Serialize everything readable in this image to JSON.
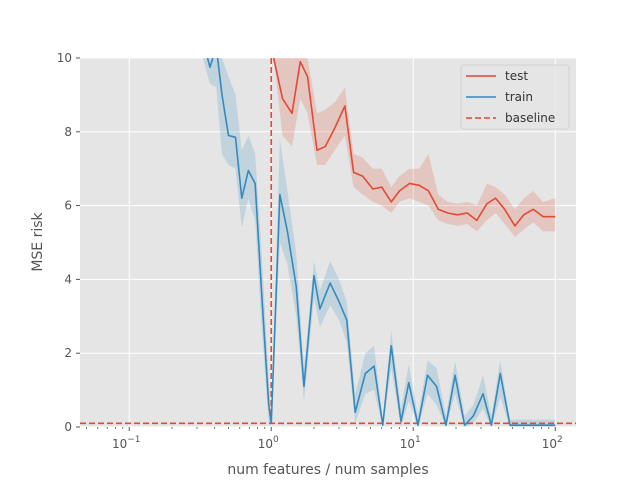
{
  "chart_data": {
    "type": "line",
    "xlabel": "num features / num samples",
    "ylabel": "MSE risk",
    "xscale": "log",
    "xlim": [
      0.045,
      140
    ],
    "ylim": [
      0,
      10
    ],
    "x_ticks": [
      {
        "value": 0.1,
        "base": "10",
        "exp": "−1"
      },
      {
        "value": 1,
        "base": "10",
        "exp": "0"
      },
      {
        "value": 10,
        "base": "10",
        "exp": "1"
      },
      {
        "value": 100,
        "base": "10",
        "exp": "2"
      }
    ],
    "y_ticks": [
      0,
      2,
      4,
      6,
      8,
      10
    ],
    "grid": true,
    "legend_position": "top-right",
    "series": [
      {
        "name": "test",
        "color": "#E24A33",
        "x": [
          1.04,
          1.2,
          1.4,
          1.6,
          1.8,
          2.1,
          2.4,
          2.8,
          3.3,
          3.8,
          4.4,
          5.2,
          6,
          7,
          8,
          9.4,
          11,
          12.8,
          15,
          17.5,
          20.5,
          24,
          28,
          33,
          38,
          44,
          52,
          60,
          70,
          82,
          100
        ],
        "values": [
          10,
          8.9,
          8.5,
          9.9,
          9.5,
          7.5,
          7.6,
          8.1,
          8.7,
          6.9,
          6.8,
          6.45,
          6.5,
          6.1,
          6.4,
          6.6,
          6.55,
          6.4,
          5.9,
          5.8,
          5.75,
          5.8,
          5.6,
          6.05,
          6.2,
          5.9,
          5.45,
          5.75,
          5.9,
          5.7,
          5.7
        ],
        "lower": [
          10,
          7.9,
          7.6,
          8.9,
          8.5,
          7.1,
          7.1,
          7.5,
          7.9,
          6.5,
          6.3,
          6.1,
          6.0,
          5.8,
          6.1,
          6.2,
          6.1,
          6.0,
          5.6,
          5.5,
          5.45,
          5.5,
          5.3,
          5.6,
          5.8,
          5.5,
          5.15,
          5.35,
          5.55,
          5.3,
          5.3
        ],
        "upper": [
          10,
          10,
          10,
          10,
          10,
          8.5,
          8.6,
          8.8,
          9.2,
          7.4,
          7.3,
          7.0,
          7.0,
          6.5,
          6.8,
          7.0,
          7.0,
          7.4,
          6.3,
          6.1,
          6.05,
          6.1,
          6.0,
          6.6,
          6.5,
          6.3,
          5.9,
          6.2,
          6.4,
          6.1,
          6.2
        ],
        "style": "solid"
      },
      {
        "name": "train",
        "color": "#348ABD",
        "x": [
          0.29,
          0.33,
          0.37,
          0.41,
          0.45,
          0.5,
          0.56,
          0.62,
          0.69,
          0.77,
          0.86,
          0.96,
          1.0,
          1.15,
          1.3,
          1.5,
          1.7,
          2.0,
          2.2,
          2.6,
          3.0,
          3.4,
          3.9,
          4.6,
          5.3,
          6.1,
          7.0,
          8.2,
          9.3,
          10.8,
          12.6,
          14.6,
          17,
          19.7,
          23,
          26.5,
          31,
          35.5,
          41,
          48,
          55,
          63,
          73,
          85,
          100
        ],
        "values": [
          10.3,
          10.5,
          9.75,
          10.3,
          9.0,
          7.9,
          7.85,
          6.2,
          6.95,
          6.6,
          3.5,
          0.6,
          0.1,
          6.3,
          5.3,
          3.8,
          1.1,
          4.1,
          3.2,
          3.9,
          3.4,
          2.9,
          0.4,
          1.45,
          1.65,
          0.05,
          2.2,
          0.15,
          1.2,
          0.05,
          1.4,
          1.1,
          0.05,
          1.4,
          0.05,
          0.3,
          0.9,
          0.05,
          1.45,
          0.05,
          0.05,
          0.05,
          0.05,
          0.05,
          0.05
        ],
        "lower": [
          10.3,
          10.5,
          9.3,
          9.2,
          7.4,
          7.1,
          7.0,
          5.4,
          6.2,
          5.6,
          2.6,
          0.1,
          0.0,
          5.0,
          4.4,
          3.0,
          0.7,
          3.5,
          2.7,
          3.3,
          2.9,
          2.3,
          0.1,
          0.9,
          1.0,
          0.0,
          1.6,
          0.0,
          0.7,
          0.0,
          0.9,
          0.6,
          0.0,
          0.9,
          0.0,
          0.1,
          0.5,
          0.0,
          0.8,
          0.0,
          0.0,
          0.0,
          0.0,
          0.0,
          0.0
        ],
        "upper": [
          10.5,
          10.5,
          10.3,
          10.5,
          10.3,
          9.5,
          9.0,
          7.5,
          7.9,
          7.4,
          4.6,
          1.3,
          0.2,
          7.8,
          6.4,
          4.7,
          1.6,
          4.5,
          3.7,
          4.5,
          4.0,
          3.4,
          0.9,
          2.0,
          2.2,
          0.2,
          2.6,
          0.5,
          1.7,
          0.3,
          1.8,
          1.6,
          0.3,
          1.8,
          0.3,
          0.6,
          1.4,
          0.3,
          1.8,
          0.2,
          0.2,
          0.2,
          0.2,
          0.2,
          0.2
        ],
        "style": "solid"
      }
    ],
    "reference_lines": [
      {
        "name": "baseline",
        "orientation": "horizontal",
        "value": 0.1,
        "color": "#E24A33",
        "style": "dashed"
      },
      {
        "name": "baseline",
        "orientation": "vertical",
        "value": 1,
        "color": "#E24A33",
        "style": "dashed"
      }
    ],
    "legend": [
      {
        "label": "test",
        "color": "#E24A33",
        "style": "solid"
      },
      {
        "label": "train",
        "color": "#348ABD",
        "style": "solid"
      },
      {
        "label": "baseline",
        "color": "#E24A33",
        "style": "dashed"
      }
    ]
  },
  "colors": {
    "plot_background": "#E5E5E5",
    "grid": "#FFFFFF",
    "text": "#555555"
  }
}
